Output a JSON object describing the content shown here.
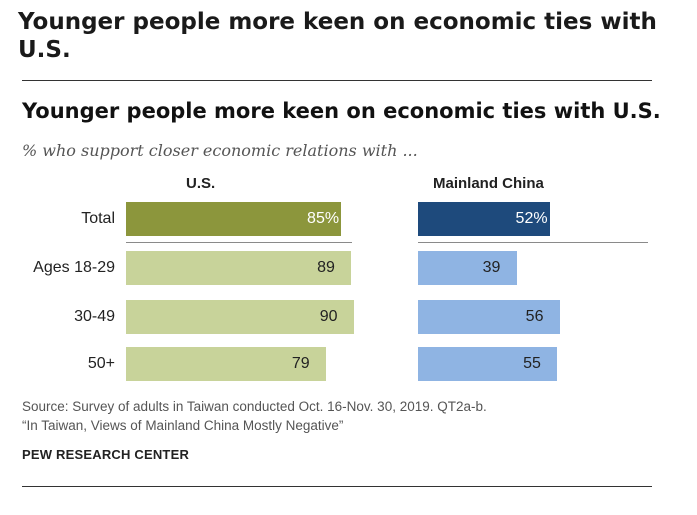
{
  "page": {
    "heading": "Younger people more keen on economic ties with U.S."
  },
  "chart_data": {
    "type": "bar",
    "title": "Younger people more keen on economic ties with U.S.",
    "subtitle": "% who support closer economic relations with ...",
    "categories": [
      "Total",
      "Ages 18-29",
      "30-49",
      "50+"
    ],
    "value_labels": {
      "us": [
        "85%",
        "89",
        "90",
        "79"
      ],
      "china": [
        "52%",
        "39",
        "56",
        "55"
      ]
    },
    "series": [
      {
        "name": "U.S.",
        "values": [
          85,
          89,
          90,
          79
        ]
      },
      {
        "name": "Mainland China",
        "values": [
          52,
          39,
          56,
          55
        ]
      }
    ],
    "colors": {
      "us_total": "#8c963c",
      "us": "#c8d39a",
      "china_total": "#1e4a7c",
      "china": "#8fb4e3"
    },
    "ylim": [
      0,
      100
    ]
  },
  "source": {
    "line1": "Source: Survey of adults in Taiwan conducted Oct. 16-Nov. 30, 2019. QT2a-b.",
    "line2": "“In Taiwan, Views of Mainland China Mostly Negative”"
  },
  "brand": "PEW RESEARCH CENTER"
}
